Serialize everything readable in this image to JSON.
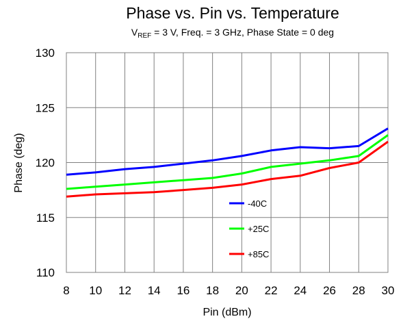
{
  "chart_data": {
    "type": "line",
    "title": "Phase vs. Pin vs. Temperature",
    "subtitle": {
      "prefix": "V",
      "sub": "REF",
      "rest": " = 3 V, Freq. = 3 GHz, Phase State = 0 deg"
    },
    "xlabel": "Pin (dBm)",
    "ylabel": "Phase (deg)",
    "xlim": [
      8,
      30
    ],
    "ylim": [
      110,
      130
    ],
    "xticks": [
      8,
      10,
      12,
      14,
      16,
      18,
      20,
      22,
      24,
      26,
      28,
      30
    ],
    "yticks": [
      110,
      115,
      120,
      125,
      130
    ],
    "grid": true,
    "legend_position": "lower-center",
    "x": [
      8,
      10,
      12,
      14,
      16,
      18,
      20,
      22,
      24,
      26,
      28,
      30
    ],
    "series": [
      {
        "name": "-40C",
        "color": "#0000ff",
        "values": [
          118.9,
          119.1,
          119.4,
          119.6,
          119.9,
          120.2,
          120.6,
          121.1,
          121.4,
          121.3,
          121.5,
          123.1
        ]
      },
      {
        "name": "+25C",
        "color": "#00ff00",
        "values": [
          117.6,
          117.8,
          118.0,
          118.2,
          118.4,
          118.6,
          119.0,
          119.6,
          119.9,
          120.2,
          120.6,
          122.5
        ]
      },
      {
        "name": "+85C",
        "color": "#ff0000",
        "values": [
          116.9,
          117.1,
          117.2,
          117.3,
          117.5,
          117.7,
          118.0,
          118.5,
          118.8,
          119.5,
          120.0,
          121.9
        ]
      }
    ]
  }
}
